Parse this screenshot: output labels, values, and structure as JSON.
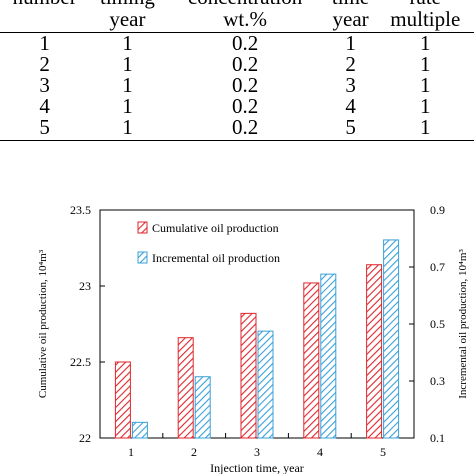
{
  "table": {
    "header_row1": [
      "number",
      "timing",
      "concentration",
      "time",
      "rate"
    ],
    "header_row2": [
      "",
      "year",
      "wt.%",
      "year",
      "multiple"
    ],
    "rows": [
      [
        "1",
        "1",
        "0.2",
        "1",
        "1"
      ],
      [
        "2",
        "1",
        "0.2",
        "2",
        "1"
      ],
      [
        "3",
        "1",
        "0.2",
        "3",
        "1"
      ],
      [
        "4",
        "1",
        "0.2",
        "4",
        "1"
      ],
      [
        "5",
        "1",
        "0.2",
        "5",
        "1"
      ]
    ]
  },
  "chart_data": {
    "type": "bar",
    "xlabel": "Injection time, year",
    "ylabel_left": "Cumulative oil production, 10⁴m³",
    "ylabel_right": "Incremental oil production, 10⁴m³",
    "categories": [
      "1",
      "2",
      "3",
      "4",
      "5"
    ],
    "series": [
      {
        "name": "Cumulative oil production",
        "axis": "left",
        "values": [
          22.5,
          22.66,
          22.82,
          23.02,
          23.14
        ],
        "color": "#e0262b"
      },
      {
        "name": "Incremental oil production",
        "axis": "right",
        "values": [
          0.155,
          0.315,
          0.475,
          0.675,
          0.795
        ],
        "color": "#3aa0d8"
      }
    ],
    "ylim_left": [
      22,
      23.5
    ],
    "ylim_right": [
      0.1,
      0.9
    ],
    "yticks_left": [
      "22",
      "22.5",
      "23",
      "23.5"
    ],
    "yticks_right": [
      "0.1",
      "0.3",
      "0.5",
      "0.7",
      "0.9"
    ],
    "legend_position": "top-left"
  }
}
